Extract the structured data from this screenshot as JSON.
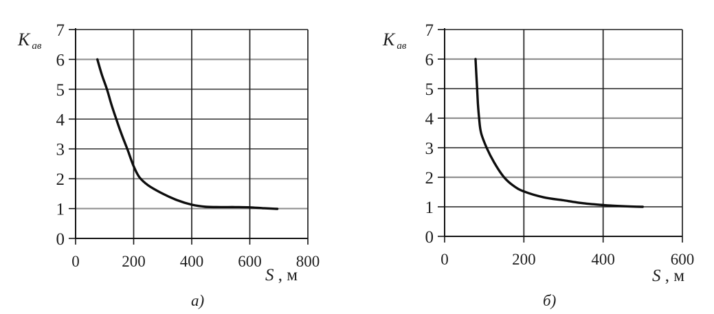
{
  "figure": {
    "background": "#ffffff",
    "text_color": "#1d1d1d"
  },
  "chart_data": [
    {
      "type": "line",
      "title": "",
      "caption": "а)",
      "ylabel": "Kав",
      "ylabel_base": "K",
      "ylabel_sub": "ав",
      "xlabel": "S , м",
      "xlabel_base": "S",
      "xlabel_unit": " , м",
      "xlim": [
        0,
        800
      ],
      "ylim": [
        0,
        7
      ],
      "x_ticks": [
        0,
        200,
        400,
        600,
        800
      ],
      "y_ticks": [
        0,
        1,
        2,
        3,
        4,
        5,
        6,
        7
      ],
      "grid": true,
      "legend": false,
      "axis_color": "#111111",
      "gridlines": {
        "vertical_color": "#1f1f1f",
        "vertical_width": 1.7,
        "horizontal": {
          "1": {
            "color": "#8f8f8f",
            "width": 2.2
          },
          "2": {
            "color": "#8f8f8f",
            "width": 2.2
          },
          "3": {
            "color": "#1f1f1f",
            "width": 1.4
          },
          "4": {
            "color": "#1f1f1f",
            "width": 1.4
          },
          "5": {
            "color": "#1f1f1f",
            "width": 1.4
          },
          "6": {
            "color": "#8f8f8f",
            "width": 2.2
          },
          "7": {
            "color": "#1f1f1f",
            "width": 1.4
          }
        }
      },
      "series": [
        {
          "color": "#0d0d0d",
          "width": 3.4,
          "x": [
            75,
            90,
            108,
            123,
            140,
            158,
            178,
            200,
            220,
            250,
            300,
            350,
            400,
            450,
            500,
            550,
            600,
            650,
            695
          ],
          "y": [
            6.0,
            5.5,
            5.0,
            4.5,
            4.0,
            3.5,
            3.0,
            2.42,
            2.05,
            1.78,
            1.5,
            1.28,
            1.13,
            1.06,
            1.05,
            1.05,
            1.04,
            1.01,
            0.99
          ]
        }
      ]
    },
    {
      "type": "line",
      "title": "",
      "caption": "б)",
      "ylabel": "Kав",
      "ylabel_base": "K",
      "ylabel_sub": "ав",
      "xlabel": "S , м",
      "xlabel_base": "S",
      "xlabel_unit": " , м",
      "xlim": [
        0,
        600
      ],
      "ylim": [
        0,
        7
      ],
      "x_ticks": [
        0,
        200,
        400,
        600
      ],
      "y_ticks": [
        0,
        1,
        2,
        3,
        4,
        5,
        6,
        7
      ],
      "grid": true,
      "legend": false,
      "axis_color": "#111111",
      "gridlines": {
        "vertical_color": "#1f1f1f",
        "vertical_width": 1.7,
        "horizontal": {
          "1": {
            "color": "#1f1f1f",
            "width": 1.4
          },
          "2": {
            "color": "#8f8f8f",
            "width": 2.2
          },
          "3": {
            "color": "#1f1f1f",
            "width": 1.4
          },
          "4": {
            "color": "#8f8f8f",
            "width": 2.2
          },
          "5": {
            "color": "#1f1f1f",
            "width": 1.4
          },
          "6": {
            "color": "#8f8f8f",
            "width": 2.2
          },
          "7": {
            "color": "#1f1f1f",
            "width": 1.4
          }
        }
      },
      "series": [
        {
          "color": "#0d0d0d",
          "width": 3.4,
          "x": [
            78,
            80,
            82,
            84,
            87,
            92,
            106,
            125,
            150,
            175,
            200,
            250,
            300,
            350,
            400,
            450,
            500
          ],
          "y": [
            6.0,
            5.5,
            5.0,
            4.5,
            4.0,
            3.5,
            3.0,
            2.5,
            2.0,
            1.7,
            1.52,
            1.32,
            1.22,
            1.12,
            1.06,
            1.02,
            1.0
          ]
        }
      ]
    }
  ]
}
